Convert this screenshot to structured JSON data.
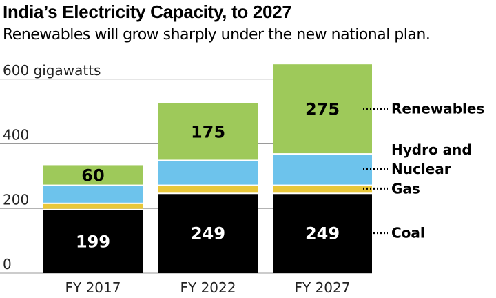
{
  "title": "India’s Electricity Capacity, to 2027",
  "subtitle": "Renewables will grow sharply under the new national plan.",
  "chart_data": {
    "type": "bar",
    "stacked": true,
    "categories": [
      "FY 2017",
      "FY 2022",
      "FY 2027"
    ],
    "series": [
      {
        "name": "Coal",
        "values": [
          199,
          249,
          249
        ],
        "color": "#000000",
        "labels": [
          "199",
          "249",
          "249"
        ],
        "label_color": "#ffffff"
      },
      {
        "name": "Gas",
        "values": [
          19,
          25,
          25
        ],
        "color": "#e8c73a",
        "labels": [
          "",
          "",
          ""
        ],
        "label_color": "#000000"
      },
      {
        "name": "Hydro and Nuclear",
        "values": [
          56,
          77,
          97
        ],
        "color": "#6dc3ec",
        "labels": [
          "",
          "",
          ""
        ],
        "label_color": "#000000"
      },
      {
        "name": "Renewables",
        "values": [
          60,
          175,
          275
        ],
        "color": "#9ec95a",
        "labels": [
          "60",
          "175",
          "275"
        ],
        "label_color": "#000000"
      }
    ],
    "ylim": [
      0,
      640
    ],
    "yticks": [
      0,
      200,
      400,
      600
    ],
    "ytick_labels": [
      "0",
      "200",
      "400",
      "600 gigawatts"
    ],
    "grid": true,
    "legend": {
      "placement": "right",
      "entries": [
        {
          "series": "Renewables",
          "lines": [
            "Renewables"
          ]
        },
        {
          "series": "Hydro and Nuclear",
          "lines": [
            "Hydro and",
            "Nuclear"
          ]
        },
        {
          "series": "Gas",
          "lines": [
            "Gas"
          ]
        },
        {
          "series": "Coal",
          "lines": [
            "Coal"
          ]
        }
      ]
    }
  }
}
